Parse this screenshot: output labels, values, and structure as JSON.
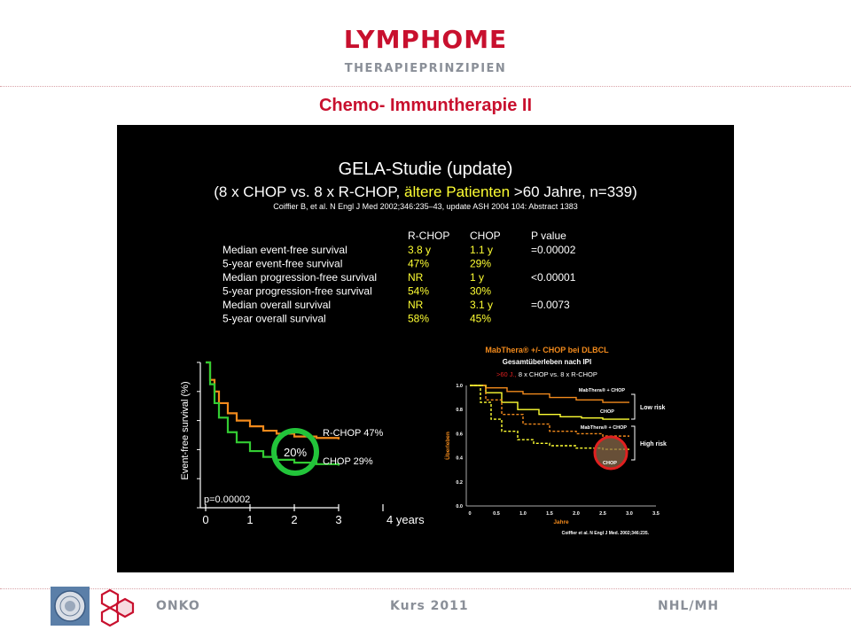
{
  "header": {
    "title": "LYMPHOME",
    "subtitle": "THERAPIEPRINZIPIEN",
    "heading": "Chemo- Immuntherapie II"
  },
  "slide": {
    "study_title": "GELA-Studie (update)",
    "study_line_a": "(8 x CHOP vs. 8 x R-CHOP, ",
    "study_line_highlight": "ältere Patienten",
    "study_line_b": " >60 Jahre, n=339)",
    "citation": "Coiffier B, et al. N Engl J Med 2002;346:235–43, update ASH 2004 104: Abstract 1383",
    "table": {
      "headers": [
        "R-CHOP",
        "CHOP",
        "P value"
      ],
      "rows": [
        {
          "label": "Median event-free survival",
          "rchop": "3.8 y",
          "chop": "1.1 y",
          "p": "=0.00002"
        },
        {
          "label": "5-year event-free survival",
          "rchop": "47%",
          "chop": "29%",
          "p": ""
        },
        {
          "label": "Median progression-free survival",
          "rchop": "NR",
          "chop": "1 y",
          "p": "<0.00001"
        },
        {
          "label": "5-year progression-free survival",
          "rchop": "54%",
          "chop": "30%",
          "p": ""
        },
        {
          "label": "Median overall survival",
          "rchop": "NR",
          "chop": "3.1 y",
          "p": "=0.0073"
        },
        {
          "label": "5-year overall survival",
          "rchop": "58%",
          "chop": "45%",
          "p": ""
        }
      ]
    },
    "colors": {
      "rchop": "#f28a1c",
      "chop": "#33cc33",
      "highlight": "#ffff33",
      "circle_green": "#22c43a",
      "circle_red": "#e02020"
    }
  },
  "chart_data": [
    {
      "type": "line",
      "ylabel": "Event-free survival (%)",
      "x_ticks": [
        "0",
        "1",
        "2",
        "3",
        "4 years"
      ],
      "annotation_p": "p=0.00002",
      "annotation_diff": "20%",
      "series": [
        {
          "name": "R-CHOP 47%",
          "x": [
            0,
            0.1,
            0.2,
            0.3,
            0.5,
            0.7,
            1.0,
            1.3,
            1.6,
            2.0,
            2.5,
            3.0
          ],
          "y": [
            100,
            88,
            80,
            72,
            65,
            60,
            56,
            53,
            51,
            49,
            48,
            47
          ]
        },
        {
          "name": "CHOP 29%",
          "x": [
            0,
            0.1,
            0.2,
            0.3,
            0.5,
            0.7,
            1.0,
            1.3,
            1.6,
            2.0,
            2.5,
            3.0
          ],
          "y": [
            100,
            85,
            72,
            62,
            52,
            45,
            39,
            35,
            33,
            31,
            30,
            29
          ]
        }
      ]
    },
    {
      "type": "line",
      "title": "MabThera® +/- CHOP bei DLBCL",
      "subtitle": "Gesamtüberleben nach IPI",
      "note_prefix": ">60 J.,",
      "note_rest": " 8 x CHOP vs. 8 x R-CHOP",
      "xlabel": "Jahre",
      "ylabel": "Überleben",
      "x_ticks": [
        "0",
        "0.5",
        "1.0",
        "1.5",
        "2.0",
        "2.5",
        "3.0",
        "3.5"
      ],
      "y_ticks": [
        "1.0",
        "0.8",
        "0.6",
        "0.4",
        "0.2",
        "0.0"
      ],
      "ylim": [
        0,
        1.0
      ],
      "xlim": [
        0,
        3.5
      ],
      "groups": [
        "Low risk",
        "High risk"
      ],
      "series_labels": [
        "MabThera® + CHOP",
        "CHOP",
        "MabThera® + CHOP",
        "CHOP"
      ],
      "source": "Coiffier et al. N Engl J Med. 2002;346:235.",
      "series": [
        {
          "name": "MabThera® + CHOP",
          "group": "Low risk",
          "x": [
            0,
            0.3,
            0.7,
            1.0,
            1.5,
            2.0,
            2.5,
            3.0
          ],
          "y": [
            1.0,
            0.98,
            0.95,
            0.93,
            0.9,
            0.88,
            0.86,
            0.86
          ]
        },
        {
          "name": "CHOP",
          "group": "Low risk",
          "x": [
            0,
            0.3,
            0.6,
            0.9,
            1.3,
            1.7,
            2.1,
            2.5,
            3.0
          ],
          "y": [
            1.0,
            0.94,
            0.86,
            0.8,
            0.76,
            0.74,
            0.73,
            0.72,
            0.72
          ]
        },
        {
          "name": "MabThera® + CHOP",
          "group": "High risk",
          "x": [
            0,
            0.3,
            0.6,
            1.0,
            1.5,
            2.0,
            2.5,
            3.0
          ],
          "y": [
            1.0,
            0.88,
            0.76,
            0.68,
            0.62,
            0.6,
            0.58,
            0.58
          ]
        },
        {
          "name": "CHOP",
          "group": "High risk",
          "x": [
            0,
            0.2,
            0.4,
            0.6,
            0.9,
            1.2,
            1.5,
            2.0,
            2.5,
            3.0
          ],
          "y": [
            1.0,
            0.86,
            0.72,
            0.62,
            0.55,
            0.52,
            0.5,
            0.48,
            0.47,
            0.47
          ]
        }
      ]
    }
  ],
  "footer": {
    "left": "ONKO",
    "center": "Kurs 2011",
    "right": "NHL/MH"
  }
}
